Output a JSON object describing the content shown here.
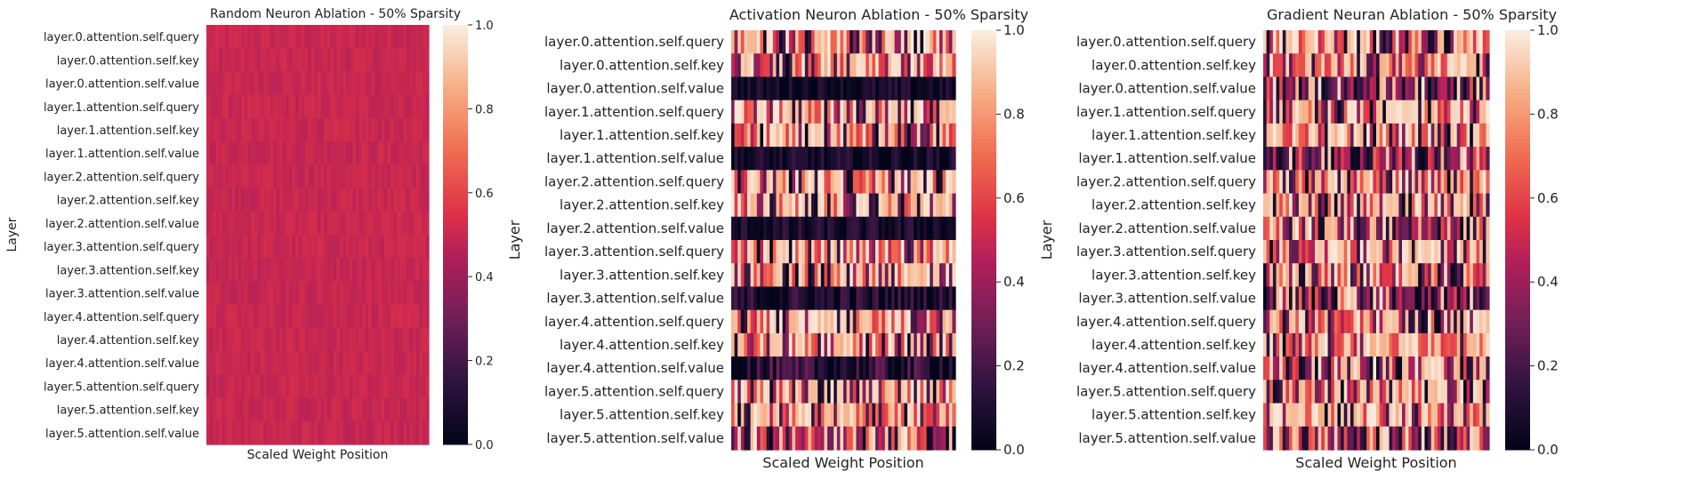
{
  "figure": {
    "panel_count": 3
  },
  "chart_data": [
    {
      "type": "heatmap",
      "title": "Random Neuron Ablation - 50% Sparsity",
      "xlabel": "Scaled Weight Position",
      "ylabel": "Layer",
      "row_labels": [
        "layer.0.attention.self.query",
        "layer.0.attention.self.key",
        "layer.0.attention.self.value",
        "layer.1.attention.self.query",
        "layer.1.attention.self.key",
        "layer.1.attention.self.value",
        "layer.2.attention.self.query",
        "layer.2.attention.self.key",
        "layer.2.attention.self.value",
        "layer.3.attention.self.query",
        "layer.3.attention.self.key",
        "layer.3.attention.self.value",
        "layer.4.attention.self.query",
        "layer.4.attention.self.key",
        "layer.4.attention.self.value",
        "layer.5.attention.self.query",
        "layer.5.attention.self.key",
        "layer.5.attention.self.value"
      ],
      "colorbar": {
        "min": 0.0,
        "max": 1.0,
        "ticks": [
          "0.0",
          "0.2",
          "0.4",
          "0.6",
          "0.8",
          "1.0"
        ],
        "colormap": "rocket"
      },
      "columns_per_row": 70,
      "row_profiles": [
        {
          "mean": 0.5,
          "spread": 0.03
        },
        {
          "mean": 0.5,
          "spread": 0.03
        },
        {
          "mean": 0.5,
          "spread": 0.03
        },
        {
          "mean": 0.5,
          "spread": 0.03
        },
        {
          "mean": 0.5,
          "spread": 0.03
        },
        {
          "mean": 0.5,
          "spread": 0.03
        },
        {
          "mean": 0.5,
          "spread": 0.03
        },
        {
          "mean": 0.5,
          "spread": 0.03
        },
        {
          "mean": 0.5,
          "spread": 0.03
        },
        {
          "mean": 0.5,
          "spread": 0.03
        },
        {
          "mean": 0.5,
          "spread": 0.03
        },
        {
          "mean": 0.5,
          "spread": 0.03
        },
        {
          "mean": 0.5,
          "spread": 0.03
        },
        {
          "mean": 0.5,
          "spread": 0.03
        },
        {
          "mean": 0.5,
          "spread": 0.03
        },
        {
          "mean": 0.5,
          "spread": 0.03
        },
        {
          "mean": 0.5,
          "spread": 0.03
        },
        {
          "mean": 0.5,
          "spread": 0.03
        }
      ]
    },
    {
      "type": "heatmap",
      "title": "Activation Neuron Ablation - 50% Sparsity",
      "xlabel": "Scaled Weight Position",
      "ylabel": "Layer",
      "row_labels": [
        "layer.0.attention.self.query",
        "layer.0.attention.self.key",
        "layer.0.attention.self.value",
        "layer.1.attention.self.query",
        "layer.1.attention.self.key",
        "layer.1.attention.self.value",
        "layer.2.attention.self.query",
        "layer.2.attention.self.key",
        "layer.2.attention.self.value",
        "layer.3.attention.self.query",
        "layer.3.attention.self.key",
        "layer.3.attention.self.value",
        "layer.4.attention.self.query",
        "layer.4.attention.self.key",
        "layer.4.attention.self.value",
        "layer.5.attention.self.query",
        "layer.5.attention.self.key",
        "layer.5.attention.self.value"
      ],
      "colorbar": {
        "min": 0.0,
        "max": 1.0,
        "ticks": [
          "0.0",
          "0.2",
          "0.4",
          "0.6",
          "0.8",
          "1.0"
        ],
        "colormap": "rocket"
      },
      "columns_per_row": 70,
      "row_profiles": [
        {
          "mean": 0.65,
          "spread": 0.45
        },
        {
          "mean": 0.7,
          "spread": 0.4
        },
        {
          "mean": 0.05,
          "spread": 0.1
        },
        {
          "mean": 0.65,
          "spread": 0.45
        },
        {
          "mean": 0.7,
          "spread": 0.4
        },
        {
          "mean": 0.05,
          "spread": 0.12
        },
        {
          "mean": 0.7,
          "spread": 0.4
        },
        {
          "mean": 0.7,
          "spread": 0.4
        },
        {
          "mean": 0.06,
          "spread": 0.12
        },
        {
          "mean": 0.7,
          "spread": 0.4
        },
        {
          "mean": 0.7,
          "spread": 0.4
        },
        {
          "mean": 0.08,
          "spread": 0.15
        },
        {
          "mean": 0.65,
          "spread": 0.45
        },
        {
          "mean": 0.7,
          "spread": 0.4
        },
        {
          "mean": 0.1,
          "spread": 0.2
        },
        {
          "mean": 0.7,
          "spread": 0.4
        },
        {
          "mean": 0.7,
          "spread": 0.4
        },
        {
          "mean": 0.45,
          "spread": 0.5
        }
      ]
    },
    {
      "type": "heatmap",
      "title": "Gradient Neuran Ablation - 50% Sparsity",
      "xlabel": "Scaled Weight Position",
      "ylabel": "Layer",
      "row_labels": [
        "layer.0.attention.self.query",
        "layer.0.attention.self.key",
        "layer.0.attention.self.value",
        "layer.1.attention.self.query",
        "layer.1.attention.self.key",
        "layer.1.attention.self.value",
        "layer.2.attention.self.query",
        "layer.2.attention.self.key",
        "layer.2.attention.self.value",
        "layer.3.attention.self.query",
        "layer.3.attention.self.key",
        "layer.3.attention.self.value",
        "layer.4.attention.self.query",
        "layer.4.attention.self.key",
        "layer.4.attention.self.value",
        "layer.5.attention.self.query",
        "layer.5.attention.self.key",
        "layer.5.attention.self.value"
      ],
      "colorbar": {
        "min": 0.0,
        "max": 1.0,
        "ticks": [
          "0.0",
          "0.2",
          "0.4",
          "0.6",
          "0.8",
          "1.0"
        ],
        "colormap": "rocket"
      },
      "columns_per_row": 70,
      "row_profiles": [
        {
          "mean": 0.7,
          "spread": 0.4
        },
        {
          "mean": 0.7,
          "spread": 0.4
        },
        {
          "mean": 0.3,
          "spread": 0.35
        },
        {
          "mean": 0.7,
          "spread": 0.4
        },
        {
          "mean": 0.75,
          "spread": 0.35
        },
        {
          "mean": 0.3,
          "spread": 0.35
        },
        {
          "mean": 0.7,
          "spread": 0.4
        },
        {
          "mean": 0.7,
          "spread": 0.4
        },
        {
          "mean": 0.35,
          "spread": 0.35
        },
        {
          "mean": 0.75,
          "spread": 0.35
        },
        {
          "mean": 0.7,
          "spread": 0.4
        },
        {
          "mean": 0.35,
          "spread": 0.4
        },
        {
          "mean": 0.7,
          "spread": 0.4
        },
        {
          "mean": 0.75,
          "spread": 0.35
        },
        {
          "mean": 0.4,
          "spread": 0.4
        },
        {
          "mean": 0.7,
          "spread": 0.4
        },
        {
          "mean": 0.75,
          "spread": 0.35
        },
        {
          "mean": 0.5,
          "spread": 0.45
        }
      ]
    }
  ]
}
